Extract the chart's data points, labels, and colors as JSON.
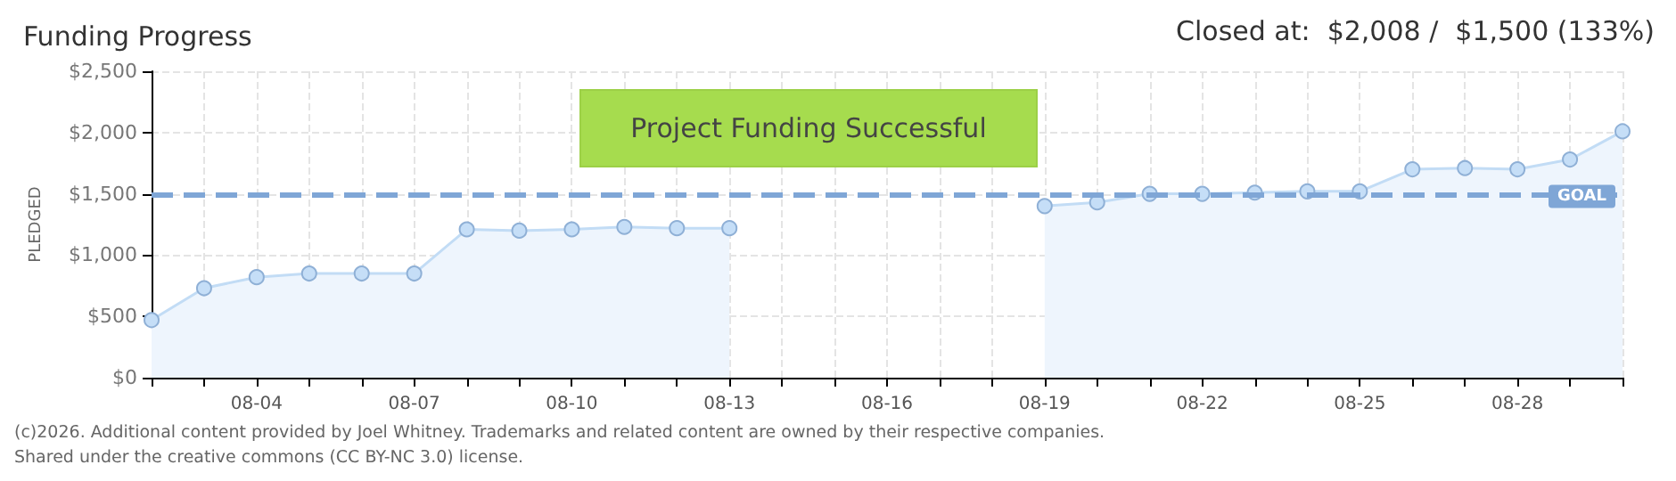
{
  "chart_data": {
    "type": "area",
    "title": "Funding Progress",
    "ylabel": "PLEDGED",
    "annotations": [
      "Closed at:  $2,008 /  $1,500 (133%)",
      "Project Funding Successful",
      "(c)2026. Additional content provided by Joel Whitney. Trademarks and related content are owned by their respective companies.",
      "Shared under the creative commons (CC BY-NC 3.0) license."
    ],
    "categories": [
      null,
      null,
      "08-04",
      null,
      null,
      "08-07",
      null,
      null,
      "08-10",
      null,
      null,
      "08-13",
      null,
      null,
      "08-16",
      null,
      null,
      "08-19",
      null,
      null,
      "08-22",
      null,
      null,
      "08-25",
      null,
      null,
      "08-28",
      null,
      null
    ],
    "series": [
      {
        "color": "#c2dcf5",
        "values": [
          470,
          730,
          820,
          850,
          850,
          850,
          1210,
          1200,
          1210,
          1230,
          1220,
          1220,
          null,
          null,
          null,
          null,
          null,
          1400,
          1430,
          1500,
          1500,
          1510,
          1520,
          1520,
          1700,
          1710,
          1700,
          1780,
          2010
        ]
      }
    ],
    "ylim": [
      0,
      2500
    ],
    "yticks": [
      {
        "value": 0,
        "label": "$0"
      },
      {
        "value": 500,
        "label": "$500"
      },
      {
        "value": 1000,
        "label": "$1,000"
      },
      {
        "value": 1500,
        "label": "$1,500"
      },
      {
        "value": 2000,
        "label": "$2,000"
      },
      {
        "value": 2500,
        "label": "$2,500"
      }
    ],
    "grid": true,
    "marker": "circle",
    "ref_lines": [
      {
        "axis": "y",
        "value": 1500,
        "label": "GOAL",
        "color": "#7fa6d6",
        "line_style": "dashed"
      }
    ]
  }
}
